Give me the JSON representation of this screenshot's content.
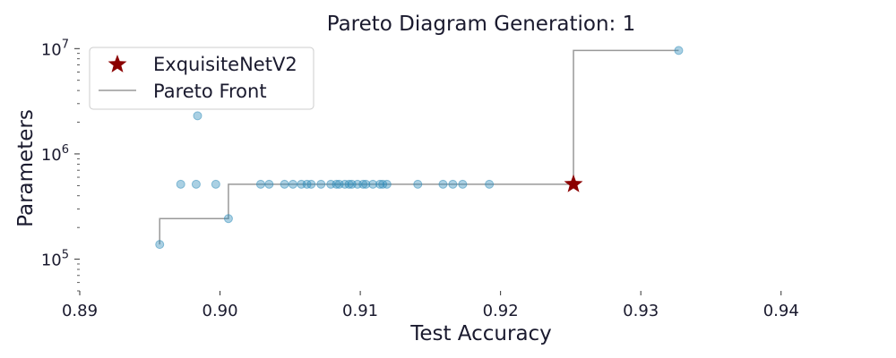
{
  "chart_data": {
    "type": "scatter",
    "title": "Pareto Diagram Generation: 1",
    "xlabel": "Test Accuracy",
    "ylabel": "Parameters",
    "xlim": [
      0.89,
      0.945
    ],
    "ylim": [
      50000,
      12000000
    ],
    "yscale": "log",
    "grid": false,
    "legend_position": "top-left",
    "x_ticks": [
      0.89,
      0.9,
      0.91,
      0.92,
      0.93,
      0.94
    ],
    "x_tick_labels": [
      "0.89",
      "0.90",
      "0.91",
      "0.92",
      "0.93",
      "0.94"
    ],
    "y_ticks": [
      100000,
      1000000,
      10000000
    ],
    "y_tick_base": "10",
    "y_tick_exponents": [
      "5",
      "6",
      "7"
    ],
    "colors": {
      "points": "#2a8ab8",
      "front": "#999999",
      "highlight": "#8b0000",
      "text": "#1a1a2e"
    },
    "series": [
      {
        "values": [
          [
            0.8957,
            138000
          ],
          [
            0.8972,
            515000
          ],
          [
            0.8983,
            515000
          ],
          [
            0.8984,
            2300000
          ],
          [
            0.8997,
            515000
          ],
          [
            0.9006,
            243000
          ],
          [
            0.9029,
            515000
          ],
          [
            0.9035,
            515000
          ],
          [
            0.9046,
            515000
          ],
          [
            0.9052,
            515000
          ],
          [
            0.9058,
            515000
          ],
          [
            0.9062,
            515000
          ],
          [
            0.9065,
            515000
          ],
          [
            0.9072,
            515000
          ],
          [
            0.9079,
            515000
          ],
          [
            0.9083,
            515000
          ],
          [
            0.9085,
            515000
          ],
          [
            0.9089,
            515000
          ],
          [
            0.9092,
            515000
          ],
          [
            0.9094,
            515000
          ],
          [
            0.9098,
            515000
          ],
          [
            0.9102,
            515000
          ],
          [
            0.9104,
            515000
          ],
          [
            0.9109,
            515000
          ],
          [
            0.9114,
            515000
          ],
          [
            0.9116,
            515000
          ],
          [
            0.9119,
            515000
          ],
          [
            0.9141,
            515000
          ],
          [
            0.9159,
            515000
          ],
          [
            0.9166,
            515000
          ],
          [
            0.9173,
            515000
          ],
          [
            0.9192,
            515000
          ],
          [
            0.9327,
            9600000
          ]
        ]
      },
      {
        "name": "Pareto Front",
        "values": [
          [
            0.8957,
            138000
          ],
          [
            0.8957,
            243000
          ],
          [
            0.9006,
            243000
          ],
          [
            0.9006,
            515000
          ],
          [
            0.9252,
            515000
          ],
          [
            0.9252,
            9600000
          ],
          [
            0.9327,
            9600000
          ]
        ]
      },
      {
        "name": "ExquisiteNetV2",
        "values": [
          [
            0.9252,
            515000
          ]
        ]
      }
    ]
  }
}
